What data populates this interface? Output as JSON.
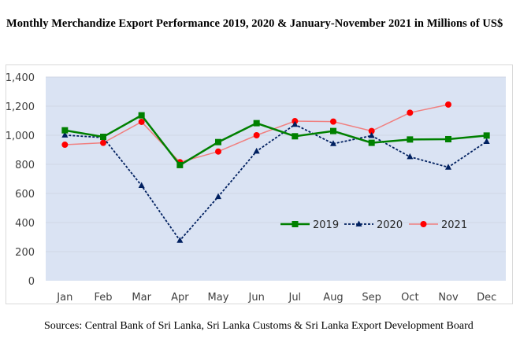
{
  "title": "Monthly Merchandize Export Performance 2019, 2020 & January-November 2021 in Millions of US$",
  "source": "Sources: Central Bank of Sri Lanka, Sri Lanka Customs & Sri Lanka Export Development Board",
  "chart_data": {
    "type": "line",
    "title": "Monthly Merchandize Export Performance 2019, 2020 & January-November 2021 in Millions of US$",
    "xlabel": "",
    "ylabel": "",
    "categories": [
      "Jan",
      "Feb",
      "Mar",
      "Apr",
      "May",
      "Jun",
      "Jul",
      "Aug",
      "Sep",
      "Oct",
      "Nov",
      "Dec"
    ],
    "ylim": [
      0,
      1400
    ],
    "yticks": [
      0,
      200,
      400,
      600,
      800,
      1000,
      1200,
      1400
    ],
    "ytick_labels": [
      "0",
      "200",
      "400",
      "600",
      "800",
      "1,000",
      "1,200",
      "1,400"
    ],
    "grid": true,
    "plot_background": "#dae3f3",
    "legend_position": "inside lower-right",
    "series": [
      {
        "name": "2019",
        "color": "#008000",
        "marker": "square",
        "line_style": "solid",
        "values": [
          1034,
          989,
          1137,
          795,
          953,
          1083,
          993,
          1029,
          948,
          971,
          973,
          998
        ]
      },
      {
        "name": "2020",
        "color": "#002060",
        "marker": "triangle",
        "line_style": "dashed",
        "values": [
          1001,
          984,
          654,
          277,
          578,
          890,
          1074,
          942,
          997,
          852,
          780,
          957
        ]
      },
      {
        "name": "2021",
        "color": "#ff0000",
        "line_color": "#f08080",
        "marker": "circle",
        "line_style": "solid",
        "values": [
          935,
          948,
          1092,
          815,
          888,
          1000,
          1097,
          1094,
          1029,
          1155,
          1211,
          null
        ]
      }
    ]
  }
}
